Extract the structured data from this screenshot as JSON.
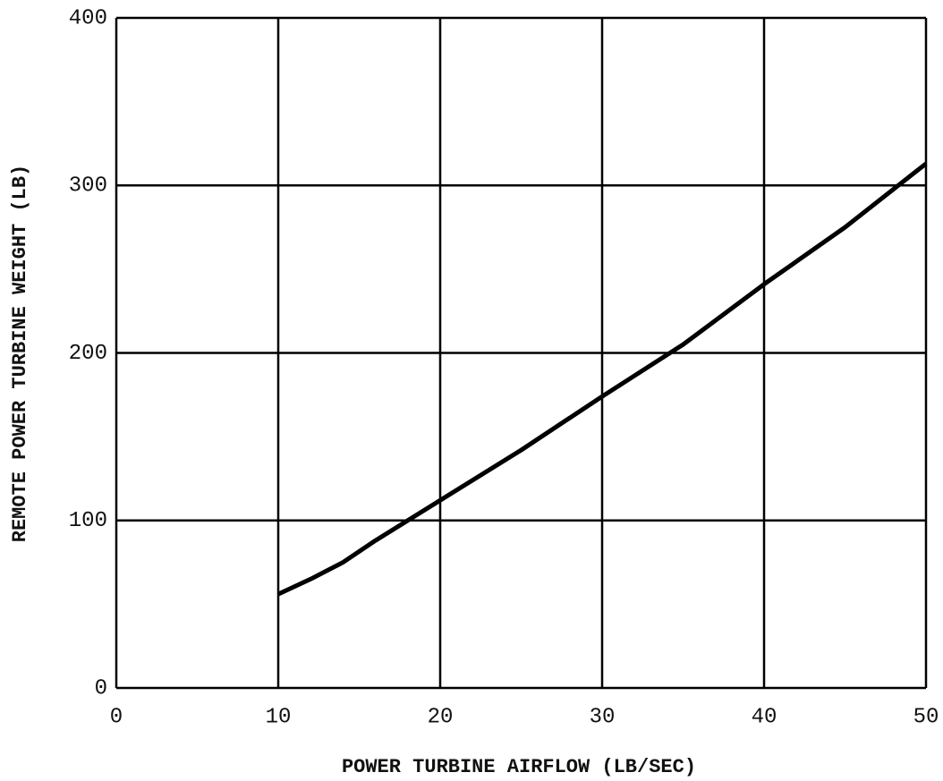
{
  "chart_data": {
    "type": "line",
    "x_label": "POWER TURBINE AIRFLOW (LB/SEC)",
    "y_label": "REMOTE POWER TURBINE WEIGHT (LB)",
    "x": [
      10,
      12,
      14,
      16,
      18,
      20,
      25,
      30,
      35,
      40,
      45,
      50
    ],
    "series": [
      {
        "color": "#000000",
        "values": [
          56,
          65,
          75,
          88,
          100,
          112,
          142,
          174,
          205,
          241,
          275,
          313
        ]
      }
    ],
    "xlim": [
      0,
      50
    ],
    "xticks": [
      0,
      10,
      20,
      30,
      40,
      50
    ],
    "ylim": [
      0,
      400
    ],
    "yticks": [
      0,
      100,
      200,
      300,
      400
    ],
    "grid": true
  }
}
